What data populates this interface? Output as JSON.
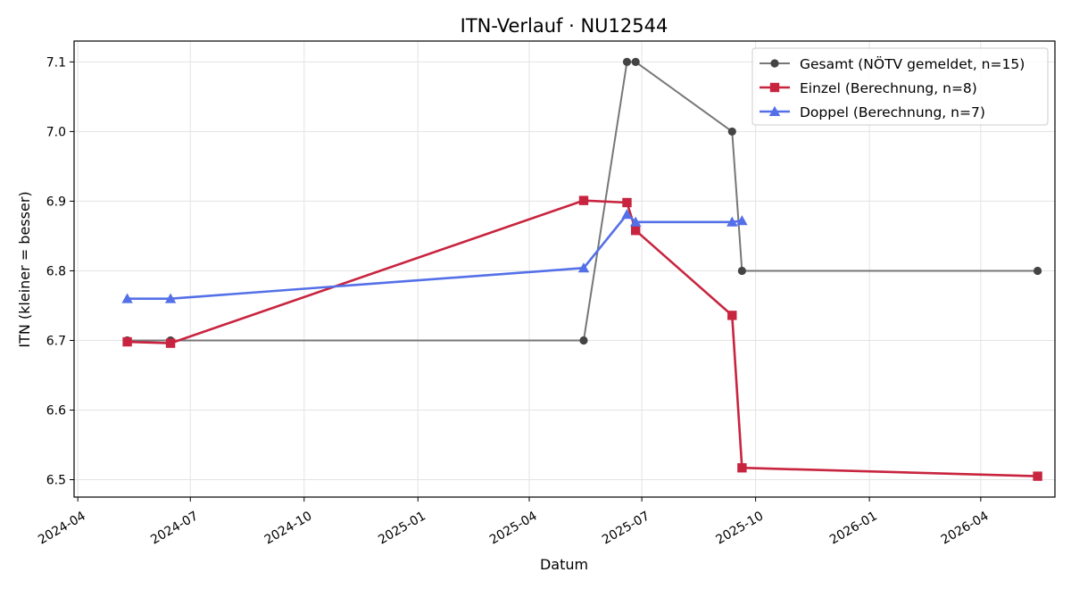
{
  "chart_data": {
    "type": "line",
    "title": "ITN-Verlauf · NU12544",
    "xlabel": "Datum",
    "ylabel": "ITN  (kleiner = besser)",
    "x_tick_labels": [
      "2024-04",
      "2024-07",
      "2024-10",
      "2025-01",
      "2025-04",
      "2025-07",
      "2025-10",
      "2026-01",
      "2026-04"
    ],
    "y_tick_labels": [
      "6.5",
      "6.6",
      "6.7",
      "6.8",
      "6.9",
      "7.0",
      "7.1"
    ],
    "ylim": [
      6.475,
      7.13
    ],
    "xlim": [
      "2024-03-29",
      "2026-05-31"
    ],
    "grid": true,
    "legend_position": "top-right",
    "series": [
      {
        "name": "Gesamt (NÖTV gemeldet, n=15)",
        "color": "#777777",
        "marker_color": "#444444",
        "marker": "circle",
        "points": [
          {
            "x": "2024-05-11",
            "y": 6.7
          },
          {
            "x": "2024-06-15",
            "y": 6.7
          },
          {
            "x": "2025-05-15",
            "y": 6.7
          },
          {
            "x": "2025-06-19",
            "y": 7.1
          },
          {
            "x": "2025-06-26",
            "y": 7.1
          },
          {
            "x": "2025-09-12",
            "y": 7.0
          },
          {
            "x": "2025-09-20",
            "y": 6.8
          },
          {
            "x": "2026-05-17",
            "y": 6.8
          }
        ]
      },
      {
        "name": "Einzel (Berechnung, n=8)",
        "color": "#c8243f",
        "marker_color": "#c8243f",
        "marker": "square",
        "points": [
          {
            "x": "2024-05-11",
            "y": 6.698
          },
          {
            "x": "2024-06-15",
            "y": 6.696
          },
          {
            "x": "2025-05-15",
            "y": 6.901
          },
          {
            "x": "2025-06-19",
            "y": 6.898
          },
          {
            "x": "2025-06-26",
            "y": 6.858
          },
          {
            "x": "2025-09-12",
            "y": 6.736
          },
          {
            "x": "2025-09-20",
            "y": 6.517
          },
          {
            "x": "2026-05-17",
            "y": 6.505
          }
        ]
      },
      {
        "name": "Doppel (Berechnung, n=7)",
        "color": "#5470e8",
        "marker_color": "#5470e8",
        "marker": "triangle",
        "points": [
          {
            "x": "2024-05-11",
            "y": 6.76
          },
          {
            "x": "2024-06-15",
            "y": 6.76
          },
          {
            "x": "2025-05-15",
            "y": 6.804
          },
          {
            "x": "2025-06-19",
            "y": 6.881
          },
          {
            "x": "2025-06-26",
            "y": 6.87
          },
          {
            "x": "2025-09-12",
            "y": 6.87
          },
          {
            "x": "2025-09-20",
            "y": 6.872
          }
        ]
      }
    ]
  }
}
